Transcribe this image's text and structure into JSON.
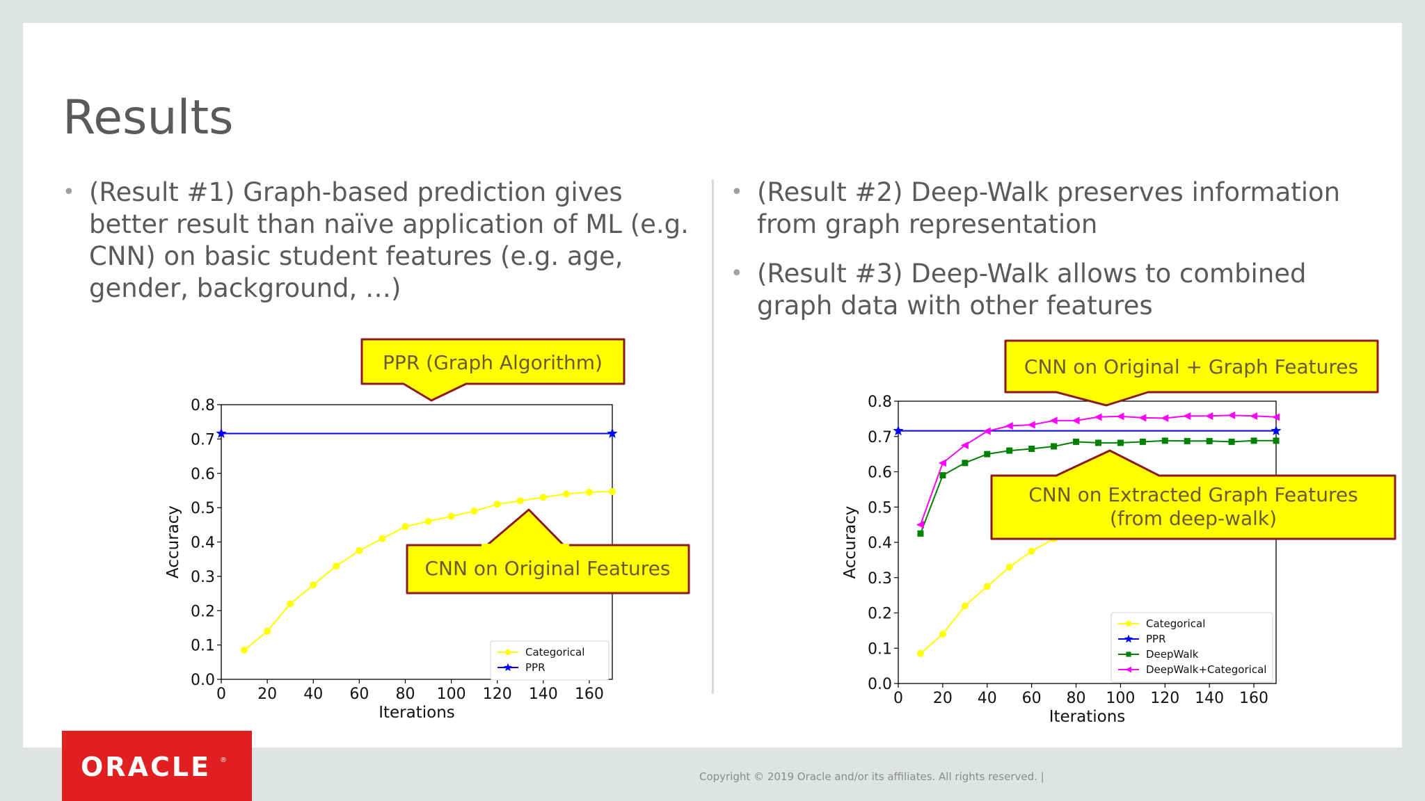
{
  "title": "Results",
  "left_bullets": [
    "(Result #1) Graph-based prediction gives better result than naïve application of ML (e.g. CNN) on basic student features (e.g. age, gender, background, …)"
  ],
  "right_bullets": [
    "(Result #2) Deep-Walk preserves information from graph representation",
    "(Result #3) Deep-Walk allows to combined graph data with other features"
  ],
  "footer": "Copyright © 2019 Oracle and/or its affiliates. All rights reserved.  |",
  "logo_text": "ORACLE",
  "colors": {
    "callout_fill": "#ffff00",
    "callout_border": "#8b1a1a",
    "logo_red": "#e02020"
  },
  "chart_data": [
    {
      "type": "line",
      "xlabel": "Iterations",
      "ylabel": "Accuracy",
      "xlim": [
        0,
        170
      ],
      "ylim": [
        0,
        0.8
      ],
      "xticks": [
        0,
        20,
        40,
        60,
        80,
        100,
        120,
        140,
        160
      ],
      "yticks": [
        0.0,
        0.1,
        0.2,
        0.3,
        0.4,
        0.5,
        0.6,
        0.7,
        0.8
      ],
      "legend_position": "bottom-right",
      "series": [
        {
          "name": "Categorical",
          "color": "#ffff00",
          "marker": "circle",
          "x": [
            10,
            20,
            30,
            40,
            50,
            60,
            70,
            80,
            90,
            100,
            110,
            120,
            130,
            140,
            150,
            160,
            170
          ],
          "y": [
            0.085,
            0.14,
            0.22,
            0.275,
            0.33,
            0.375,
            0.41,
            0.445,
            0.46,
            0.475,
            0.49,
            0.51,
            0.52,
            0.53,
            0.54,
            0.545,
            0.547
          ]
        },
        {
          "name": "PPR",
          "color": "#0000ff",
          "marker": "star",
          "x": [
            0,
            170
          ],
          "y": [
            0.716,
            0.716
          ]
        }
      ],
      "callouts": [
        {
          "text": "PPR (Graph Algorithm)"
        },
        {
          "text": "CNN on Original Features"
        }
      ]
    },
    {
      "type": "line",
      "xlabel": "Iterations",
      "ylabel": "Accuracy",
      "xlim": [
        0,
        170
      ],
      "ylim": [
        0,
        0.8
      ],
      "xticks": [
        0,
        20,
        40,
        60,
        80,
        100,
        120,
        140,
        160
      ],
      "yticks": [
        0.0,
        0.1,
        0.2,
        0.3,
        0.4,
        0.5,
        0.6,
        0.7,
        0.8
      ],
      "legend_position": "bottom-right",
      "series": [
        {
          "name": "Categorical",
          "color": "#ffff00",
          "marker": "circle",
          "x": [
            10,
            20,
            30,
            40,
            50,
            60,
            70,
            80
          ],
          "y": [
            0.085,
            0.14,
            0.22,
            0.275,
            0.33,
            0.375,
            0.41,
            0.445
          ]
        },
        {
          "name": "PPR",
          "color": "#0000ff",
          "marker": "star",
          "x": [
            0,
            170
          ],
          "y": [
            0.716,
            0.716
          ]
        },
        {
          "name": "DeepWalk",
          "color": "#008000",
          "marker": "square",
          "x": [
            10,
            20,
            30,
            40,
            50,
            60,
            70,
            80,
            90,
            100,
            110,
            120,
            130,
            140,
            150,
            160,
            170
          ],
          "y": [
            0.425,
            0.59,
            0.625,
            0.65,
            0.66,
            0.665,
            0.672,
            0.685,
            0.682,
            0.682,
            0.685,
            0.688,
            0.687,
            0.687,
            0.685,
            0.688,
            0.688
          ]
        },
        {
          "name": "DeepWalk+Categorical",
          "color": "#ff00ff",
          "marker": "triangle-left",
          "x": [
            10,
            20,
            30,
            40,
            50,
            60,
            70,
            80,
            90,
            100,
            110,
            120,
            130,
            140,
            150,
            160,
            170
          ],
          "y": [
            0.45,
            0.625,
            0.675,
            0.715,
            0.73,
            0.733,
            0.745,
            0.745,
            0.755,
            0.757,
            0.753,
            0.752,
            0.758,
            0.758,
            0.76,
            0.758,
            0.755
          ]
        }
      ],
      "callouts": [
        {
          "text": "CNN on Original + Graph Features"
        },
        {
          "text": "CNN on Extracted Graph Features"
        },
        {
          "text": "(from deep-walk)"
        }
      ]
    }
  ]
}
